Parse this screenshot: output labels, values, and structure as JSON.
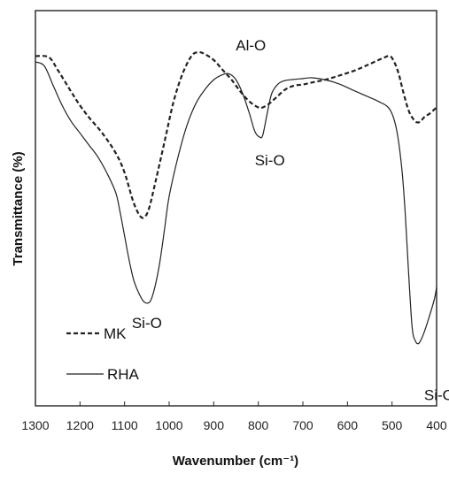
{
  "chart_data": {
    "type": "line",
    "xlabel": "Wavenumber (cm⁻¹)",
    "ylabel": "Transmittance (%)",
    "xlim": [
      1300,
      400
    ],
    "x_reversed": true,
    "ylim": [
      0,
      100
    ],
    "y_ticks_shown": false,
    "x_ticks": [
      1300,
      1200,
      1100,
      1000,
      900,
      800,
      700,
      600,
      500,
      400
    ],
    "x_tick_labels": [
      "1300",
      "1200",
      "1100",
      "1000",
      "900",
      "800",
      "700",
      "600",
      "500",
      "400"
    ],
    "grid": false,
    "legend_position": "bottom-left",
    "series": [
      {
        "name": "MK",
        "line_style": "dashed",
        "color": "#222222",
        "points": [
          [
            1300,
            88.5
          ],
          [
            1270,
            88.2
          ],
          [
            1250,
            85.0
          ],
          [
            1220,
            79.5
          ],
          [
            1200,
            76.0
          ],
          [
            1180,
            73.0
          ],
          [
            1150,
            69.0
          ],
          [
            1120,
            64.0
          ],
          [
            1100,
            59.0
          ],
          [
            1080,
            51.5
          ],
          [
            1065,
            48.0
          ],
          [
            1055,
            47.8
          ],
          [
            1045,
            50.0
          ],
          [
            1030,
            57.0
          ],
          [
            1010,
            67.0
          ],
          [
            990,
            77.0
          ],
          [
            970,
            84.0
          ],
          [
            950,
            88.5
          ],
          [
            935,
            89.5
          ],
          [
            920,
            89.0
          ],
          [
            900,
            87.5
          ],
          [
            880,
            85.0
          ],
          [
            860,
            82.5
          ],
          [
            840,
            79.5
          ],
          [
            820,
            77.0
          ],
          [
            800,
            75.5
          ],
          [
            790,
            75.5
          ],
          [
            775,
            76.5
          ],
          [
            760,
            78.0
          ],
          [
            740,
            80.0
          ],
          [
            720,
            81.0
          ],
          [
            700,
            81.3
          ],
          [
            680,
            81.8
          ],
          [
            650,
            82.5
          ],
          [
            620,
            83.5
          ],
          [
            580,
            85.0
          ],
          [
            550,
            86.5
          ],
          [
            520,
            88.0
          ],
          [
            505,
            88.5
          ],
          [
            495,
            87.0
          ],
          [
            485,
            84.0
          ],
          [
            475,
            79.5
          ],
          [
            462,
            74.5
          ],
          [
            448,
            72.0
          ],
          [
            438,
            71.8
          ],
          [
            428,
            73.0
          ],
          [
            415,
            74.0
          ],
          [
            400,
            75.5
          ]
        ]
      },
      {
        "name": "RHA",
        "line_style": "solid",
        "color": "#222222",
        "points": [
          [
            1300,
            87.0
          ],
          [
            1280,
            86.0
          ],
          [
            1260,
            81.0
          ],
          [
            1240,
            76.0
          ],
          [
            1220,
            72.0
          ],
          [
            1200,
            69.0
          ],
          [
            1180,
            66.0
          ],
          [
            1160,
            63.0
          ],
          [
            1140,
            59.0
          ],
          [
            1120,
            54.0
          ],
          [
            1110,
            49.0
          ],
          [
            1100,
            43.0
          ],
          [
            1090,
            37.0
          ],
          [
            1080,
            32.0
          ],
          [
            1070,
            29.0
          ],
          [
            1058,
            26.5
          ],
          [
            1048,
            26.0
          ],
          [
            1040,
            27.0
          ],
          [
            1030,
            31.0
          ],
          [
            1020,
            37.0
          ],
          [
            1010,
            45.0
          ],
          [
            1000,
            53.0
          ],
          [
            980,
            63.0
          ],
          [
            960,
            71.0
          ],
          [
            940,
            76.5
          ],
          [
            920,
            80.0
          ],
          [
            900,
            82.5
          ],
          [
            880,
            83.8
          ],
          [
            865,
            84.0
          ],
          [
            850,
            82.5
          ],
          [
            835,
            79.0
          ],
          [
            820,
            74.0
          ],
          [
            808,
            69.5
          ],
          [
            797,
            68.0
          ],
          [
            790,
            68.5
          ],
          [
            780,
            74.0
          ],
          [
            770,
            79.0
          ],
          [
            755,
            81.5
          ],
          [
            740,
            82.3
          ],
          [
            720,
            82.6
          ],
          [
            700,
            82.8
          ],
          [
            680,
            83.0
          ],
          [
            650,
            82.5
          ],
          [
            620,
            81.5
          ],
          [
            590,
            80.0
          ],
          [
            560,
            78.5
          ],
          [
            530,
            77.0
          ],
          [
            505,
            75.0
          ],
          [
            490,
            70.0
          ],
          [
            478,
            60.0
          ],
          [
            470,
            48.0
          ],
          [
            463,
            34.0
          ],
          [
            455,
            20.0
          ],
          [
            448,
            16.5
          ],
          [
            440,
            15.8
          ],
          [
            430,
            18.0
          ],
          [
            418,
            22.0
          ],
          [
            405,
            27.0
          ],
          [
            400,
            30.0
          ]
        ]
      }
    ],
    "annotations": [
      {
        "text": "Al-O",
        "x": 920,
        "y": 89.5
      },
      {
        "text": "Si-O",
        "x": 790,
        "y": 68.0
      },
      {
        "text": "Si-O",
        "x": 1050,
        "y": 26.0
      },
      {
        "text": "Si-O",
        "x": 440,
        "y": 15.8
      }
    ]
  },
  "legend": {
    "items": [
      {
        "label": "MK",
        "line_style": "dashed"
      },
      {
        "label": "RHA",
        "line_style": "solid"
      }
    ]
  }
}
